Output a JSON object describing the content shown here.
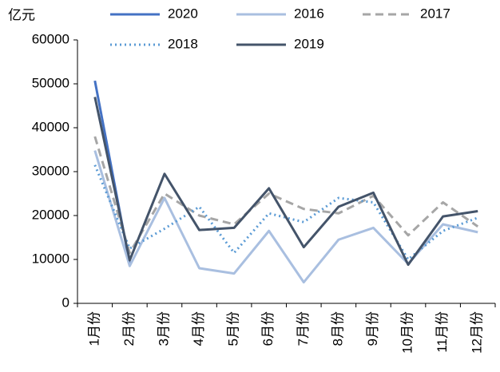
{
  "chart_data": {
    "type": "line",
    "y_label": "亿元",
    "categories": [
      "1月份",
      "2月份",
      "3月份",
      "4月份",
      "5月份",
      "6月份",
      "7月份",
      "8月份",
      "9月份",
      "10月份",
      "11月份",
      "12月份"
    ],
    "series": [
      {
        "name": "2020",
        "color": "#4472c4",
        "style": "solid",
        "values": [
          50700,
          9000,
          null,
          null,
          null,
          null,
          null,
          null,
          null,
          null,
          null,
          null
        ]
      },
      {
        "name": "2016",
        "color": "#a9bfe0",
        "style": "solid",
        "values": [
          34800,
          8500,
          24000,
          8000,
          6800,
          16500,
          4800,
          14500,
          17200,
          9000,
          18000,
          16200
        ]
      },
      {
        "name": "2017",
        "color": "#a6a6a6",
        "style": "dashed",
        "values": [
          38000,
          11500,
          25000,
          20000,
          18000,
          25000,
          21500,
          20500,
          24500,
          15500,
          23000,
          17500
        ]
      },
      {
        "name": "2018",
        "color": "#5b9bd5",
        "style": "dotted",
        "values": [
          31500,
          12500,
          17000,
          22000,
          11500,
          20500,
          18500,
          24000,
          23000,
          10000,
          16500,
          19500
        ]
      },
      {
        "name": "2019",
        "color": "#44546a",
        "style": "solid",
        "values": [
          47000,
          9800,
          29500,
          16700,
          17200,
          26200,
          12800,
          22000,
          25200,
          8800,
          19800,
          21000
        ]
      }
    ],
    "ylim": [
      0,
      60000
    ],
    "yticks": [
      0,
      10000,
      20000,
      30000,
      40000,
      50000,
      60000
    ],
    "grid": false
  }
}
